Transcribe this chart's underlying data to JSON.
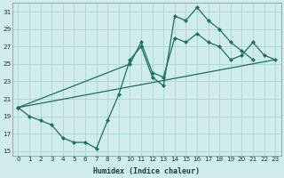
{
  "xlabel": "Humidex (Indice chaleur)",
  "bg_color": "#d0ecec",
  "grid_color": "#aed8d8",
  "line_color": "#1a7060",
  "xlim": [
    -0.5,
    23.5
  ],
  "ylim": [
    14.5,
    32.0
  ],
  "xticks": [
    0,
    1,
    2,
    3,
    4,
    5,
    6,
    7,
    8,
    9,
    10,
    11,
    12,
    13,
    14,
    15,
    16,
    17,
    18,
    19,
    20,
    21,
    22,
    23
  ],
  "yticks": [
    15,
    17,
    19,
    21,
    23,
    25,
    27,
    29,
    31
  ],
  "curve1_x": [
    0,
    1,
    2,
    3,
    4,
    5,
    6,
    7,
    8,
    9,
    10,
    11,
    12,
    13,
    14,
    15,
    16,
    17,
    18,
    19,
    20,
    21
  ],
  "curve1_y": [
    20,
    19,
    18.5,
    18,
    16.5,
    16,
    16,
    15.3,
    18.5,
    21.5,
    25.5,
    27.0,
    23.5,
    22.5,
    30.5,
    30.0,
    31.5,
    30.0,
    29.0,
    27.5,
    26.5,
    25.5
  ],
  "curve2_x": [
    0,
    10,
    11,
    12,
    13,
    14,
    15,
    16,
    17,
    18,
    19,
    20,
    21,
    22,
    23
  ],
  "curve2_y": [
    20,
    25,
    27.5,
    24,
    23.5,
    28,
    27.5,
    28.5,
    27.5,
    27,
    25.5,
    26,
    27.5,
    26,
    25.5
  ],
  "curve3_x": [
    0,
    23
  ],
  "curve3_y": [
    20,
    25.5
  ],
  "linewidth": 0.9,
  "markersize": 2.2,
  "xlabel_fontsize": 6.0,
  "tick_fontsize": 5.2
}
